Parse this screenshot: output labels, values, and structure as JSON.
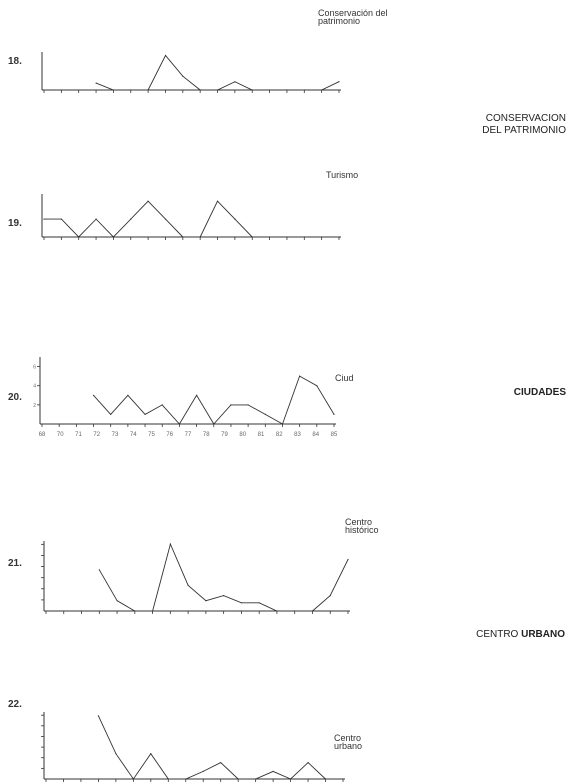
{
  "section_labels": {
    "conservacion_line1": "CONSERVACION",
    "conservacion_line2": "DEL PATRIMONIO",
    "ciudades": "CIUDADES",
    "centro_urbano_part1": "CENTRO ",
    "centro_urbano_part2": "URBANO"
  },
  "chart_data": [
    {
      "type": "line",
      "number": "18.",
      "title_lines": [
        "Conservación del",
        "patrimonio"
      ],
      "x": [
        68,
        69,
        70,
        71,
        72,
        73,
        74,
        75,
        76,
        77,
        78,
        79,
        80,
        81,
        82,
        83,
        84,
        85
      ],
      "values": [
        null,
        null,
        null,
        1,
        0,
        0,
        0,
        5,
        2,
        0,
        0,
        1.2,
        0,
        0,
        0,
        0,
        0,
        1.2
      ],
      "ylim": [
        0,
        5.5
      ],
      "x_tick_labels": [],
      "y_tick_labels": []
    },
    {
      "type": "line",
      "number": "19.",
      "title_lines": [
        "Turismo"
      ],
      "x": [
        68,
        69,
        70,
        71,
        72,
        73,
        74,
        75,
        76,
        77,
        78,
        79,
        80,
        81,
        82,
        83,
        84,
        85
      ],
      "values": [
        1,
        1,
        0,
        1,
        0,
        1,
        2,
        1,
        0,
        0,
        2,
        1,
        0,
        0,
        0,
        0,
        0,
        0
      ],
      "ylim": [
        0,
        2.4
      ],
      "x_tick_labels": [],
      "y_tick_labels": []
    },
    {
      "type": "line",
      "number": "20.",
      "title_lines": [
        "Ciud"
      ],
      "x": [
        68,
        69,
        70,
        71,
        72,
        73,
        74,
        75,
        76,
        77,
        78,
        79,
        80,
        81,
        82,
        83,
        84,
        85
      ],
      "values": [
        null,
        null,
        null,
        3,
        1,
        3,
        1,
        2,
        0,
        3,
        0,
        2,
        2,
        1,
        0,
        5,
        4,
        1
      ],
      "ylim": [
        0,
        7
      ],
      "x_tick_labels": [
        "68",
        "70",
        "71",
        "72",
        "73",
        "74",
        "75",
        "76",
        "77",
        "78",
        "79",
        "80",
        "81",
        "82",
        "83",
        "84",
        "85"
      ],
      "y_tick_labels": [
        "2",
        "4",
        "6"
      ],
      "y_ticks": [
        2,
        4,
        6
      ]
    },
    {
      "type": "line",
      "number": "21.",
      "title_lines": [
        "Centro",
        "histórico"
      ],
      "x": [
        68,
        69,
        70,
        71,
        72,
        73,
        74,
        75,
        76,
        77,
        78,
        79,
        80,
        81,
        82,
        83,
        84,
        85
      ],
      "values": [
        null,
        null,
        null,
        4,
        1,
        0,
        0,
        6.5,
        2.5,
        1,
        1.5,
        0.8,
        0.8,
        0,
        0,
        0,
        1.5,
        5
      ],
      "ylim": [
        0,
        6.8
      ],
      "x_tick_labels": [],
      "y_tick_labels": []
    },
    {
      "type": "line",
      "number": "22.",
      "title_lines": [
        "Centro",
        "urbano"
      ],
      "x": [
        68,
        69,
        70,
        71,
        72,
        73,
        74,
        75,
        76,
        77,
        78,
        79,
        80,
        81,
        82,
        83,
        84,
        85
      ],
      "values": [
        null,
        null,
        null,
        5,
        2,
        0,
        2,
        0,
        0,
        0.6,
        1.3,
        0,
        0,
        0.6,
        0,
        1.3,
        0,
        0
      ],
      "ylim": [
        0,
        5.3
      ],
      "x_tick_labels": [],
      "y_tick_labels": []
    }
  ]
}
